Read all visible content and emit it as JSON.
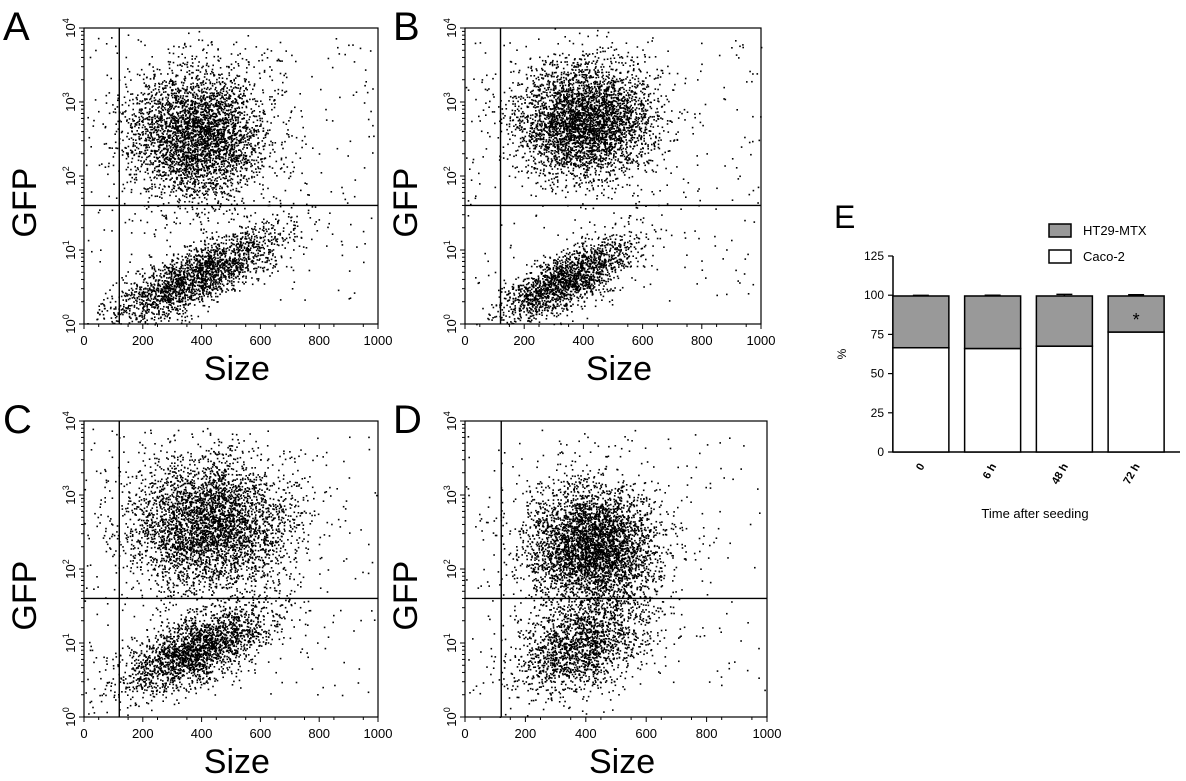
{
  "chart_data": [
    {
      "panel_label": "A",
      "type": "scatter",
      "xlabel": "Size",
      "ylabel": "GFP",
      "x_ticks": [
        "0",
        "200",
        "400",
        "600",
        "800",
        "1000"
      ],
      "y_ticks": [
        "10",
        "10",
        "10",
        "10",
        "10"
      ],
      "y_tick_exponents": [
        "0",
        "1",
        "2",
        "3",
        "4"
      ],
      "xlim": [
        0,
        1000
      ],
      "ylim": [
        1,
        10000
      ],
      "y_scale": "log",
      "gate_x": 120,
      "gate_y": 40,
      "clusters": [
        {
          "cx": 380,
          "cy_log": 2.55,
          "sx": 120,
          "sy_log": 0.45,
          "n": 3600,
          "slope": 0.0
        },
        {
          "cx": 380,
          "cy_log": 0.65,
          "sx": 150,
          "sy_log": 0.2,
          "n": 2200,
          "slope": 0.0018
        }
      ]
    },
    {
      "panel_label": "B",
      "type": "scatter",
      "xlabel": "Size",
      "ylabel": "GFP",
      "x_ticks": [
        "0",
        "200",
        "400",
        "600",
        "800",
        "1000"
      ],
      "y_ticks": [
        "10",
        "10",
        "10",
        "10",
        "10"
      ],
      "y_tick_exponents": [
        "0",
        "1",
        "2",
        "3",
        "4"
      ],
      "xlim": [
        0,
        1000
      ],
      "ylim": [
        1,
        10000
      ],
      "y_scale": "log",
      "gate_x": 120,
      "gate_y": 40,
      "clusters": [
        {
          "cx": 400,
          "cy_log": 2.75,
          "sx": 120,
          "sy_log": 0.4,
          "n": 3800,
          "slope": 0.0
        },
        {
          "cx": 340,
          "cy_log": 0.6,
          "sx": 110,
          "sy_log": 0.2,
          "n": 1800,
          "slope": 0.0018
        }
      ]
    },
    {
      "panel_label": "C",
      "type": "scatter",
      "xlabel": "Size",
      "ylabel": "GFP",
      "x_ticks": [
        "0",
        "200",
        "400",
        "600",
        "800",
        "1000"
      ],
      "y_ticks": [
        "10",
        "10",
        "10",
        "10",
        "10"
      ],
      "y_tick_exponents": [
        "0",
        "1",
        "2",
        "3",
        "4"
      ],
      "xlim": [
        0,
        1000
      ],
      "ylim": [
        1,
        10000
      ],
      "y_scale": "log",
      "gate_x": 120,
      "gate_y": 40,
      "clusters": [
        {
          "cx": 430,
          "cy_log": 2.6,
          "sx": 140,
          "sy_log": 0.45,
          "n": 3800,
          "slope": 0.0
        },
        {
          "cx": 380,
          "cy_log": 0.9,
          "sx": 130,
          "sy_log": 0.22,
          "n": 2200,
          "slope": 0.0015
        }
      ]
    },
    {
      "panel_label": "D",
      "type": "scatter",
      "xlabel": "Size",
      "ylabel": "GFP",
      "x_ticks": [
        "0",
        "200",
        "400",
        "600",
        "800",
        "1000"
      ],
      "y_ticks": [
        "10",
        "10",
        "10",
        "10",
        "10"
      ],
      "y_tick_exponents": [
        "0",
        "1",
        "2",
        "3",
        "4"
      ],
      "xlim": [
        0,
        1000
      ],
      "ylim": [
        1,
        10000
      ],
      "y_scale": "log",
      "gate_x": 120,
      "gate_y": 40,
      "clusters": [
        {
          "cx": 420,
          "cy_log": 2.3,
          "sx": 110,
          "sy_log": 0.42,
          "n": 4000,
          "slope": 0.0
        },
        {
          "cx": 380,
          "cy_log": 0.95,
          "sx": 110,
          "sy_log": 0.3,
          "n": 1700,
          "slope": 0.0012
        }
      ]
    },
    {
      "panel_label": "E",
      "type": "bar",
      "stacked": true,
      "categories": [
        "0",
        "6 h",
        "48 h",
        "72 h"
      ],
      "series": [
        {
          "name": "Caco-2",
          "values": [
            66.5,
            66,
            67.5,
            76.5
          ],
          "errors": [
            0.5,
            0.5,
            1.0,
            0.8
          ],
          "color": "#ffffff"
        },
        {
          "name": "HT29-MTX",
          "values": [
            33,
            33.5,
            32,
            23
          ],
          "errors": [
            0.4,
            0.5,
            1.0,
            0.8
          ],
          "color": "#999999"
        }
      ],
      "annotations": [
        {
          "category": "72 h",
          "text": "*"
        }
      ],
      "xlabel": "Time after seeding",
      "ylabel": "%",
      "y_ticks": [
        0,
        25,
        50,
        75,
        100,
        125
      ],
      "ylim": [
        0,
        125
      ],
      "legend_position": "top-right"
    }
  ]
}
